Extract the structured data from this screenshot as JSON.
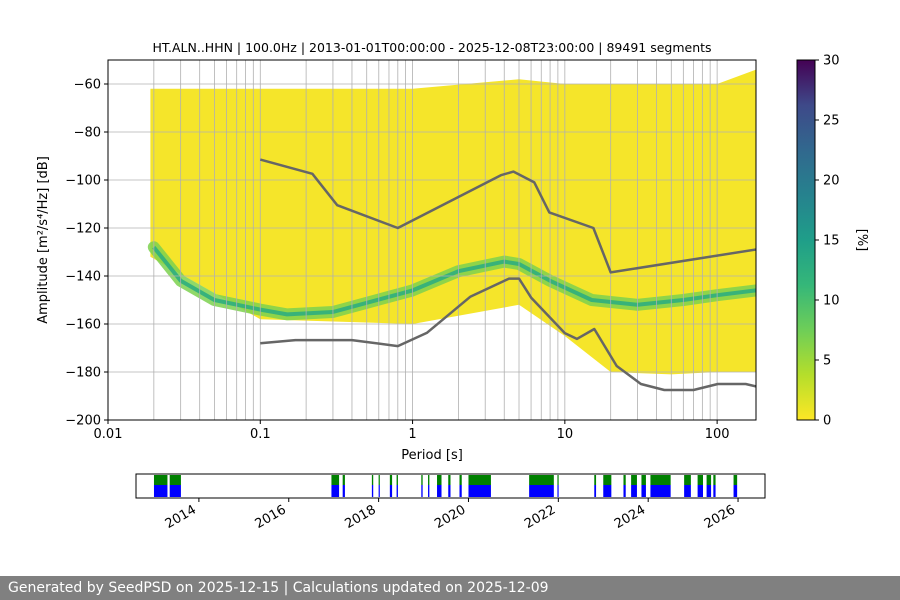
{
  "chart_data": [
    {
      "type": "heatmap",
      "title": "HT.ALN..HHN | 100.0Hz | 2013-01-01T00:00:00 - 2025-12-08T23:00:00 | 89491 segments",
      "xlabel": "Period [s]",
      "ylabel": "Amplitude [m²/s⁴/Hz] [dB]",
      "x_scale": "log",
      "xlim": [
        0.01,
        180
      ],
      "ylim": [
        -200,
        -50
      ],
      "x_ticks": [
        "0.01",
        "0.1",
        "1",
        "10",
        "100"
      ],
      "y_ticks": [
        "−200",
        "−180",
        "−160",
        "−140",
        "−120",
        "−100",
        "−80",
        "−60"
      ],
      "grid": true,
      "colormap": "viridis",
      "colorbar": {
        "label": "[%]",
        "range": [
          0,
          30
        ],
        "ticks": [
          "0",
          "5",
          "10",
          "15",
          "20",
          "25",
          "30"
        ]
      },
      "probability_envelope": {
        "period": [
          0.019,
          0.1,
          1,
          5,
          10,
          20,
          50,
          100,
          180
        ],
        "upper_db": [
          -62,
          -62,
          -62,
          -58,
          -60,
          -60,
          -60,
          -60,
          -54
        ],
        "lower_db": [
          -132,
          -158,
          -160,
          -152,
          -165,
          -180,
          -181,
          -180,
          -180
        ]
      },
      "mode_curve": {
        "period": [
          0.02,
          0.03,
          0.05,
          0.1,
          0.15,
          0.3,
          1,
          2,
          4,
          5,
          8,
          15,
          30,
          60,
          100,
          180
        ],
        "db": [
          -128,
          -142,
          -150,
          -154,
          -156,
          -155,
          -146,
          -138,
          -134,
          -135,
          -142,
          -150,
          -152,
          -150,
          -148,
          -146
        ]
      },
      "series": [
        {
          "name": "NHNM",
          "period": [
            0.1,
            0.22,
            0.32,
            0.8,
            3.8,
            4.6,
            6.3,
            7.9,
            15.4,
            20,
            354.8
          ],
          "db": [
            -91.5,
            -97.4,
            -110.5,
            -120,
            -98,
            -96.5,
            -101,
            -113.5,
            -120,
            -138.5,
            -126
          ]
        },
        {
          "name": "NLNM",
          "period": [
            0.1,
            0.17,
            0.4,
            0.8,
            1.24,
            2.4,
            4.3,
            5,
            6,
            10,
            12,
            15.6,
            21.9,
            31.6,
            45,
            70,
            101,
            154,
            180
          ],
          "db": [
            -168,
            -166.7,
            -166.7,
            -169.2,
            -163.7,
            -148.6,
            -141.1,
            -141.1,
            -149,
            -163.8,
            -166.2,
            -162.1,
            -177.5,
            -185,
            -187.5,
            -187.5,
            -185,
            -185,
            -186
          ]
        }
      ]
    },
    {
      "type": "timeline",
      "x_ticks": [
        "2014",
        "2016",
        "2018",
        "2020",
        "2022",
        "2024",
        "2026"
      ],
      "xlim": [
        2012.6,
        2026.6
      ],
      "colors": {
        "top": "#008000",
        "bottom": "#0000ff"
      },
      "coverage_ranges": [
        [
          2013.0,
          2013.3
        ],
        [
          2013.35,
          2013.6
        ],
        [
          2016.95,
          2017.12
        ],
        [
          2017.2,
          2017.25
        ],
        [
          2017.85,
          2017.88
        ],
        [
          2018.0,
          2018.02
        ],
        [
          2018.25,
          2018.3
        ],
        [
          2018.4,
          2018.43
        ],
        [
          2018.95,
          2018.98
        ],
        [
          2019.1,
          2019.13
        ],
        [
          2019.3,
          2019.4
        ],
        [
          2019.55,
          2019.6
        ],
        [
          2019.8,
          2019.85
        ],
        [
          2020.0,
          2020.5
        ],
        [
          2021.35,
          2021.9
        ],
        [
          2021.98,
          2022.0
        ],
        [
          2022.8,
          2022.84
        ],
        [
          2023.0,
          2023.18
        ],
        [
          2023.45,
          2023.5
        ],
        [
          2023.62,
          2023.75
        ],
        [
          2023.85,
          2023.95
        ],
        [
          2024.05,
          2024.5
        ],
        [
          2024.8,
          2024.95
        ],
        [
          2025.1,
          2025.22
        ],
        [
          2025.3,
          2025.4
        ],
        [
          2025.45,
          2025.5
        ],
        [
          2025.9,
          2025.98
        ]
      ]
    }
  ],
  "footer_text": "Generated by SeedPSD on 2025-12-15 | Calculations updated on 2025-12-09"
}
